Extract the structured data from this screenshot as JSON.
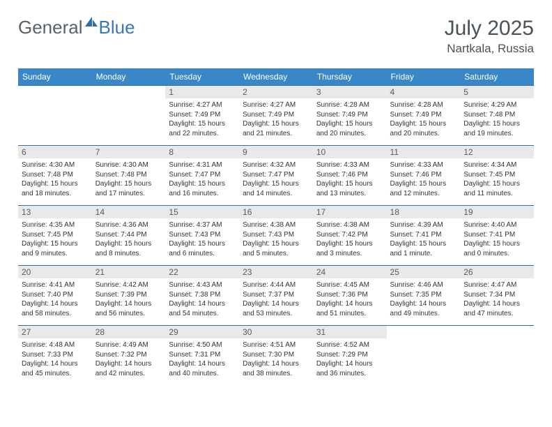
{
  "logo": {
    "part1": "General",
    "part2": "Blue"
  },
  "title": "July 2025",
  "subtitle": "Nartkala, Russia",
  "colors": {
    "header_bg": "#3a87c7",
    "header_text": "#ffffff",
    "row_border": "#2f6fa8",
    "daynum_bg": "#e9e9e9",
    "daynum_text": "#5a5a5a",
    "body_text": "#333333",
    "title_text": "#4a5258",
    "logo_gray": "#5a6268",
    "logo_blue": "#3a78b5"
  },
  "weekdays": [
    "Sunday",
    "Monday",
    "Tuesday",
    "Wednesday",
    "Thursday",
    "Friday",
    "Saturday"
  ],
  "weeks": [
    [
      null,
      null,
      {
        "n": "1",
        "sr": "4:27 AM",
        "ss": "7:49 PM",
        "dl": "15 hours and 22 minutes."
      },
      {
        "n": "2",
        "sr": "4:27 AM",
        "ss": "7:49 PM",
        "dl": "15 hours and 21 minutes."
      },
      {
        "n": "3",
        "sr": "4:28 AM",
        "ss": "7:49 PM",
        "dl": "15 hours and 20 minutes."
      },
      {
        "n": "4",
        "sr": "4:28 AM",
        "ss": "7:49 PM",
        "dl": "15 hours and 20 minutes."
      },
      {
        "n": "5",
        "sr": "4:29 AM",
        "ss": "7:48 PM",
        "dl": "15 hours and 19 minutes."
      }
    ],
    [
      {
        "n": "6",
        "sr": "4:30 AM",
        "ss": "7:48 PM",
        "dl": "15 hours and 18 minutes."
      },
      {
        "n": "7",
        "sr": "4:30 AM",
        "ss": "7:48 PM",
        "dl": "15 hours and 17 minutes."
      },
      {
        "n": "8",
        "sr": "4:31 AM",
        "ss": "7:47 PM",
        "dl": "15 hours and 16 minutes."
      },
      {
        "n": "9",
        "sr": "4:32 AM",
        "ss": "7:47 PM",
        "dl": "15 hours and 14 minutes."
      },
      {
        "n": "10",
        "sr": "4:33 AM",
        "ss": "7:46 PM",
        "dl": "15 hours and 13 minutes."
      },
      {
        "n": "11",
        "sr": "4:33 AM",
        "ss": "7:46 PM",
        "dl": "15 hours and 12 minutes."
      },
      {
        "n": "12",
        "sr": "4:34 AM",
        "ss": "7:45 PM",
        "dl": "15 hours and 11 minutes."
      }
    ],
    [
      {
        "n": "13",
        "sr": "4:35 AM",
        "ss": "7:45 PM",
        "dl": "15 hours and 9 minutes."
      },
      {
        "n": "14",
        "sr": "4:36 AM",
        "ss": "7:44 PM",
        "dl": "15 hours and 8 minutes."
      },
      {
        "n": "15",
        "sr": "4:37 AM",
        "ss": "7:43 PM",
        "dl": "15 hours and 6 minutes."
      },
      {
        "n": "16",
        "sr": "4:38 AM",
        "ss": "7:43 PM",
        "dl": "15 hours and 5 minutes."
      },
      {
        "n": "17",
        "sr": "4:38 AM",
        "ss": "7:42 PM",
        "dl": "15 hours and 3 minutes."
      },
      {
        "n": "18",
        "sr": "4:39 AM",
        "ss": "7:41 PM",
        "dl": "15 hours and 1 minute."
      },
      {
        "n": "19",
        "sr": "4:40 AM",
        "ss": "7:41 PM",
        "dl": "15 hours and 0 minutes."
      }
    ],
    [
      {
        "n": "20",
        "sr": "4:41 AM",
        "ss": "7:40 PM",
        "dl": "14 hours and 58 minutes."
      },
      {
        "n": "21",
        "sr": "4:42 AM",
        "ss": "7:39 PM",
        "dl": "14 hours and 56 minutes."
      },
      {
        "n": "22",
        "sr": "4:43 AM",
        "ss": "7:38 PM",
        "dl": "14 hours and 54 minutes."
      },
      {
        "n": "23",
        "sr": "4:44 AM",
        "ss": "7:37 PM",
        "dl": "14 hours and 53 minutes."
      },
      {
        "n": "24",
        "sr": "4:45 AM",
        "ss": "7:36 PM",
        "dl": "14 hours and 51 minutes."
      },
      {
        "n": "25",
        "sr": "4:46 AM",
        "ss": "7:35 PM",
        "dl": "14 hours and 49 minutes."
      },
      {
        "n": "26",
        "sr": "4:47 AM",
        "ss": "7:34 PM",
        "dl": "14 hours and 47 minutes."
      }
    ],
    [
      {
        "n": "27",
        "sr": "4:48 AM",
        "ss": "7:33 PM",
        "dl": "14 hours and 45 minutes."
      },
      {
        "n": "28",
        "sr": "4:49 AM",
        "ss": "7:32 PM",
        "dl": "14 hours and 42 minutes."
      },
      {
        "n": "29",
        "sr": "4:50 AM",
        "ss": "7:31 PM",
        "dl": "14 hours and 40 minutes."
      },
      {
        "n": "30",
        "sr": "4:51 AM",
        "ss": "7:30 PM",
        "dl": "14 hours and 38 minutes."
      },
      {
        "n": "31",
        "sr": "4:52 AM",
        "ss": "7:29 PM",
        "dl": "14 hours and 36 minutes."
      },
      null,
      null
    ]
  ],
  "labels": {
    "sunrise": "Sunrise:",
    "sunset": "Sunset:",
    "daylight": "Daylight:"
  }
}
